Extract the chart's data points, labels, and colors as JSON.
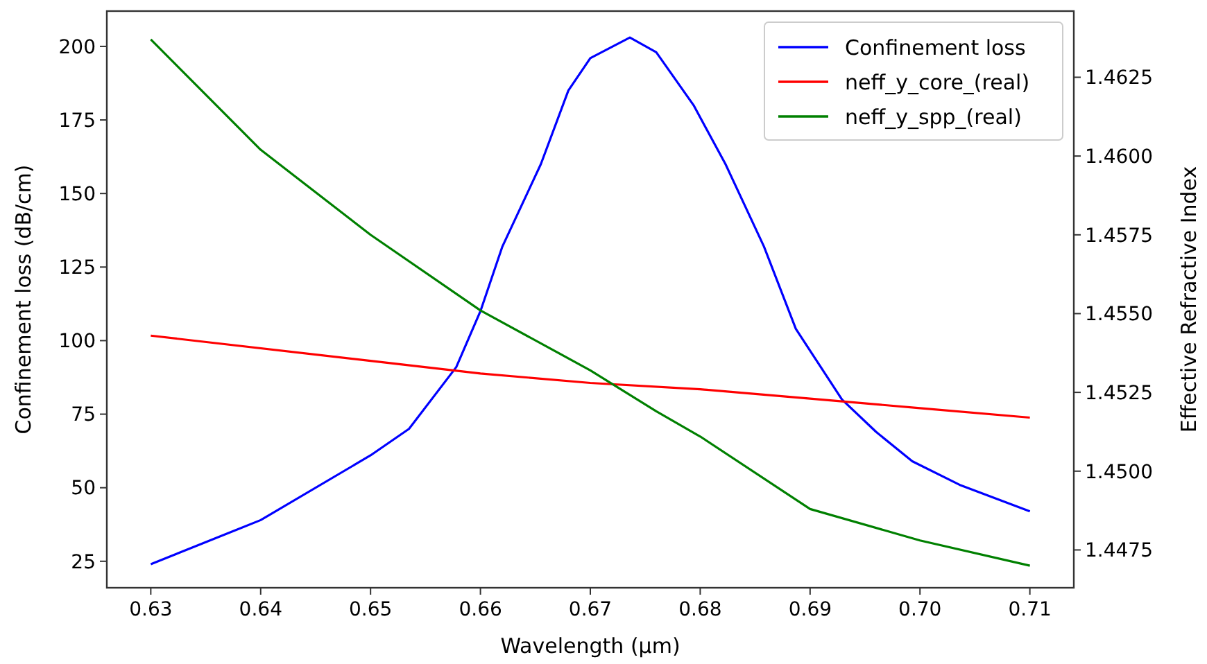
{
  "chart_data": {
    "type": "line",
    "xlabel": "Wavelength (µm)",
    "ylabel": "Confinement loss (dB/cm)",
    "y2label": "Effective Refractive Index",
    "xlim": [
      0.626,
      0.714
    ],
    "xticks": [
      0.63,
      0.64,
      0.65,
      0.66,
      0.67,
      0.68,
      0.69,
      {
        "value": 0.7,
        "label": "0.70"
      },
      0.71
    ],
    "ylim": [
      16,
      212
    ],
    "yticks": [
      25,
      50,
      75,
      100,
      125,
      150,
      175,
      200
    ],
    "y2lim": [
      1.4463,
      1.4646
    ],
    "y2ticks": [
      1.4475,
      {
        "value": 1.45,
        "label": "1.4500"
      },
      1.4525,
      {
        "value": 1.455,
        "label": "1.4550"
      },
      1.4575,
      {
        "value": 1.46,
        "label": "1.4600"
      },
      1.4625
    ],
    "legend": "top right",
    "grid": false,
    "series": [
      {
        "name": "Confinement loss",
        "color": "#0000ff",
        "x": [
          0.63,
          0.64,
          0.65,
          0.6535,
          0.6578,
          0.66,
          0.662,
          0.6655,
          0.668,
          0.67,
          0.6736,
          0.676,
          0.6794,
          0.6823,
          0.6858,
          0.6887,
          0.6929,
          0.696,
          0.6993,
          0.7036,
          0.71
        ],
        "values": [
          24,
          39,
          61,
          70,
          91,
          110,
          132,
          160,
          185,
          196,
          203,
          198,
          180,
          160,
          132,
          104,
          80,
          69,
          59,
          51,
          42
        ]
      },
      {
        "name": "neff_y_core_(real)",
        "color": "#ff0000",
        "axis": "y2",
        "x": [
          0.63,
          0.65,
          0.66,
          0.67,
          0.68,
          0.69,
          0.7,
          0.71
        ],
        "values": [
          1.4543,
          1.4535,
          1.4531,
          1.4528,
          1.4526,
          1.4523,
          1.452,
          1.4517
        ]
      },
      {
        "name": "neff_y_spp_(real)",
        "color": "#008000",
        "axis": "y2",
        "x": [
          0.63,
          0.64,
          0.65,
          0.66,
          0.67,
          0.676,
          0.68,
          0.69,
          0.7,
          0.71
        ],
        "values": [
          1.4637,
          1.4602,
          1.4575,
          1.4551,
          1.4532,
          1.4519,
          1.4511,
          1.4488,
          1.4478,
          1.447
        ]
      }
    ]
  }
}
